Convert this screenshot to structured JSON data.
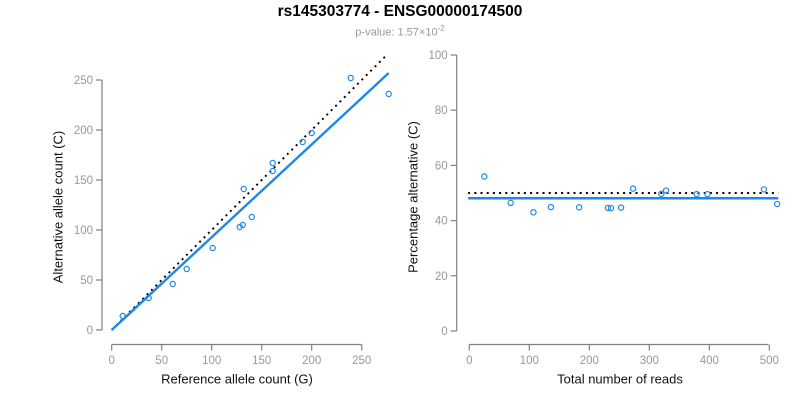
{
  "header": {
    "title": "rs145303774 - ENSG00000174500",
    "pvalue_label": "p-value:",
    "pvalue_mantissa": "1.57×10",
    "pvalue_exponent": "-2"
  },
  "colors": {
    "accent_blue": "#1E87E8",
    "identity_line_black": "#000000",
    "axis_gray": "#808080",
    "tick_label_gray": "#999999",
    "title_black": "#000000",
    "subtitle_gray": "#9A9A9A"
  },
  "chart_data": [
    {
      "type": "scatter",
      "title": "rs145303774 - ENSG00000174500",
      "subtitle": "p-value: 1.57×10^-2",
      "xlabel": "Reference allele count (G)",
      "ylabel": "Alternative allele count (C)",
      "xlim": [
        0,
        278
      ],
      "ylim": [
        0,
        278
      ],
      "xticks": [
        0,
        50,
        100,
        150,
        200,
        250
      ],
      "yticks": [
        0,
        50,
        100,
        150,
        200,
        250
      ],
      "grid": false,
      "legend": "none",
      "points": [
        [
          11,
          14
        ],
        [
          37,
          32
        ],
        [
          61,
          46
        ],
        [
          75,
          61
        ],
        [
          101,
          82
        ],
        [
          128,
          103
        ],
        [
          131,
          105
        ],
        [
          140,
          113
        ],
        [
          132,
          141
        ],
        [
          161,
          159
        ],
        [
          161,
          167
        ],
        [
          191,
          188
        ],
        [
          200,
          197
        ],
        [
          239,
          252
        ],
        [
          277,
          236
        ]
      ],
      "lines": [
        {
          "name": "expected-1-to-1-line",
          "style": "dotted",
          "color": "#000000",
          "x1": 0,
          "y1": 0,
          "x2": 274,
          "y2": 274
        },
        {
          "name": "fitted-line",
          "style": "solid",
          "color": "#1E87E8",
          "x1": 0,
          "y1": 0,
          "x2": 277,
          "y2": 257
        }
      ]
    },
    {
      "type": "scatter",
      "xlabel": "Total number of reads",
      "ylabel": "Percentage alternative (C)",
      "xlim": [
        0,
        515
      ],
      "ylim": [
        0,
        100
      ],
      "xticks": [
        0,
        100,
        200,
        300,
        400,
        500
      ],
      "yticks": [
        0,
        20,
        40,
        60,
        80,
        100
      ],
      "grid": false,
      "legend": "none",
      "points": [
        [
          25,
          56
        ],
        [
          69,
          46.4
        ],
        [
          107,
          43
        ],
        [
          136,
          44.9
        ],
        [
          183,
          44.8
        ],
        [
          231,
          44.6
        ],
        [
          236,
          44.5
        ],
        [
          253,
          44.7
        ],
        [
          273,
          51.6
        ],
        [
          320,
          49.7
        ],
        [
          328,
          50.9
        ],
        [
          379,
          49.6
        ],
        [
          397,
          49.6
        ],
        [
          491,
          51.3
        ],
        [
          513,
          46
        ]
      ],
      "lines": [
        {
          "name": "expected-50-percent-line",
          "style": "dotted",
          "color": "#000000",
          "x1": -2,
          "y1": 50,
          "x2": 515,
          "y2": 50
        },
        {
          "name": "fitted-line",
          "style": "solid",
          "color": "#1E87E8",
          "x1": -2,
          "y1": 48.1,
          "x2": 515,
          "y2": 48.1
        }
      ]
    }
  ]
}
